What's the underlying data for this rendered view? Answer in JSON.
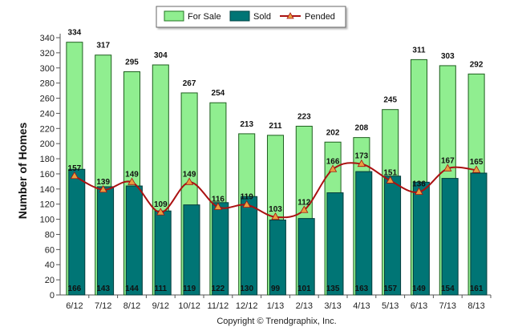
{
  "chart_data": {
    "type": "bar",
    "title": "",
    "xlabel": "",
    "ylabel": "Number of Homes",
    "ylim": [
      0,
      340
    ],
    "y_tick_step": 20,
    "grid": false,
    "legend_position": "top-center",
    "categories": [
      "6/12",
      "7/12",
      "8/12",
      "9/12",
      "10/12",
      "11/12",
      "12/12",
      "1/13",
      "2/13",
      "3/13",
      "4/13",
      "5/13",
      "6/13",
      "7/13",
      "8/13"
    ],
    "series": [
      {
        "name": "For Sale",
        "kind": "bar",
        "color": "#90ee90",
        "values": [
          334,
          317,
          295,
          304,
          267,
          254,
          213,
          211,
          223,
          202,
          208,
          245,
          311,
          303,
          292
        ]
      },
      {
        "name": "Sold",
        "kind": "bar",
        "color": "#007575",
        "values": [
          166,
          143,
          144,
          111,
          119,
          122,
          130,
          99,
          101,
          135,
          163,
          157,
          149,
          154,
          161
        ]
      },
      {
        "name": "Pended",
        "kind": "line",
        "color": "#aa1111",
        "marker_color": "#e8a040",
        "values": [
          157,
          139,
          149,
          109,
          149,
          116,
          119,
          103,
          112,
          166,
          173,
          151,
          136,
          167,
          165
        ]
      }
    ]
  },
  "footer": {
    "copyright": "Copyright © Trendgraphix, Inc."
  }
}
